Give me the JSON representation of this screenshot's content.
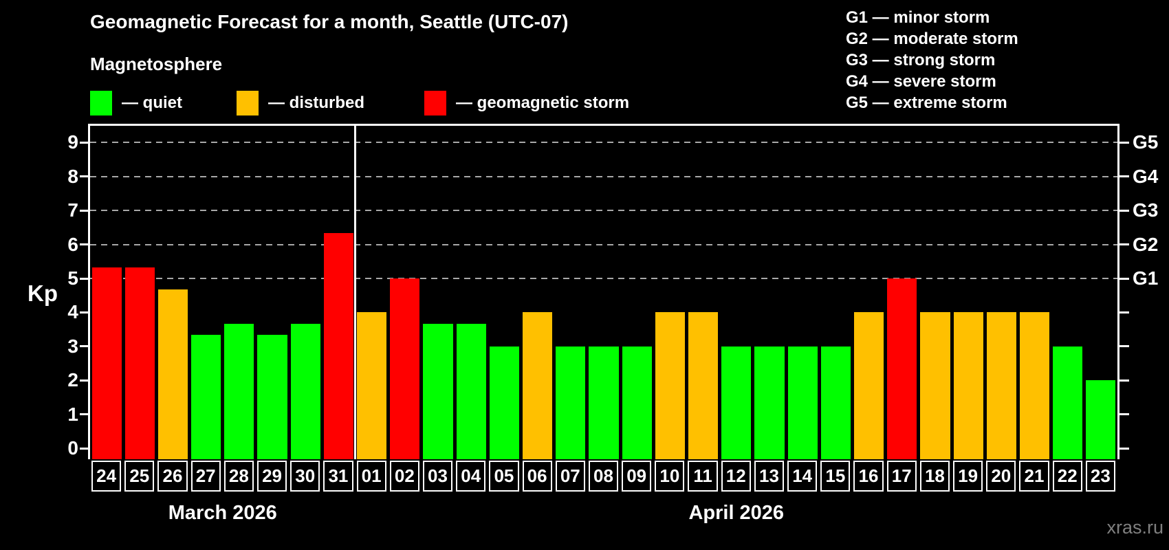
{
  "header": {
    "title": "Geomagnetic Forecast for a month, Seattle (UTC-07)",
    "subtitle": "Magnetosphere"
  },
  "legend": {
    "quiet_label": "— quiet",
    "disturbed_label": "— disturbed",
    "storm_label": "— geomagnetic storm"
  },
  "g_legend": {
    "g1": "G1 — minor storm",
    "g2": "G2 — moderate storm",
    "g3": "G3 — strong storm",
    "g4": "G4 — severe storm",
    "g5": "G5 — extreme storm"
  },
  "y_axis": {
    "label": "Kp",
    "ticks": [
      0,
      1,
      2,
      3,
      4,
      5,
      6,
      7,
      8,
      9
    ]
  },
  "right_axis": {
    "labels": [
      {
        "kp": 5,
        "label": "G1"
      },
      {
        "kp": 6,
        "label": "G2"
      },
      {
        "kp": 7,
        "label": "G3"
      },
      {
        "kp": 8,
        "label": "G4"
      },
      {
        "kp": 9,
        "label": "G5"
      }
    ]
  },
  "colors": {
    "quiet": "#00ff00",
    "disturbed": "#ffc000",
    "storm": "#ff0000",
    "grid": "#a8a8a8",
    "axis": "#ffffff"
  },
  "watermark": "xras.ru",
  "chart_data": {
    "type": "bar",
    "title": "Geomagnetic Forecast for a month, Seattle (UTC-07)",
    "ylabel": "Kp",
    "ylim": [
      0,
      9.5
    ],
    "grid": "dashed horizontal at Kp 5-9",
    "gridlines_at": [
      5,
      6,
      7,
      8,
      9
    ],
    "legend_position": "top-left",
    "months": [
      {
        "label": "March 2026",
        "start_index": 0,
        "days": 8
      },
      {
        "label": "April 2026",
        "start_index": 8,
        "days": 23
      }
    ],
    "categories": [
      "24",
      "25",
      "26",
      "27",
      "28",
      "29",
      "30",
      "31",
      "01",
      "02",
      "03",
      "04",
      "05",
      "06",
      "07",
      "08",
      "09",
      "10",
      "11",
      "12",
      "13",
      "14",
      "15",
      "16",
      "17",
      "18",
      "19",
      "20",
      "21",
      "22",
      "23"
    ],
    "values": [
      5.33,
      5.33,
      4.67,
      3.33,
      3.67,
      3.33,
      3.67,
      6.33,
      4,
      5,
      3.67,
      3.67,
      3,
      4,
      3,
      3,
      3,
      4,
      4,
      3,
      3,
      3,
      3,
      4,
      5,
      4,
      4,
      4,
      4,
      3,
      2
    ],
    "statuses": [
      "storm",
      "storm",
      "disturbed",
      "quiet",
      "quiet",
      "quiet",
      "quiet",
      "storm",
      "disturbed",
      "storm",
      "quiet",
      "quiet",
      "quiet",
      "disturbed",
      "quiet",
      "quiet",
      "quiet",
      "disturbed",
      "disturbed",
      "quiet",
      "quiet",
      "quiet",
      "quiet",
      "disturbed",
      "storm",
      "disturbed",
      "disturbed",
      "disturbed",
      "disturbed",
      "quiet",
      "quiet"
    ]
  }
}
